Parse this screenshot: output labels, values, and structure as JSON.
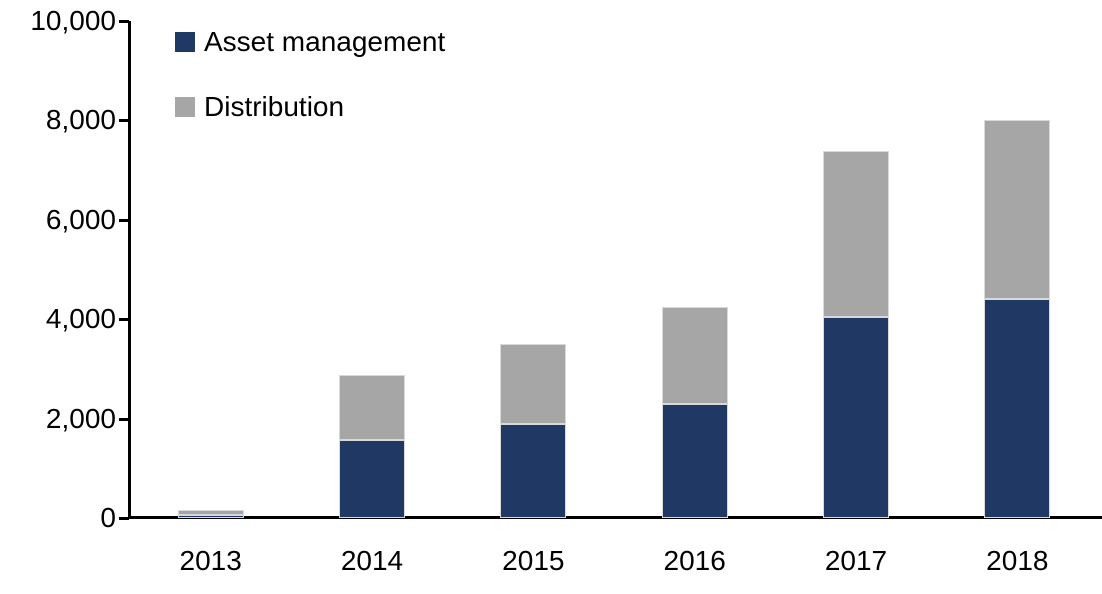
{
  "chart_data": {
    "type": "bar",
    "stacked": true,
    "title": "",
    "xlabel": "",
    "ylabel": "",
    "categories": [
      "2013",
      "2014",
      "2015",
      "2016",
      "2017",
      "2018"
    ],
    "series": [
      {
        "name": "Asset management",
        "color": "#1f3864",
        "values": [
          70,
          1560,
          1900,
          2300,
          4050,
          4400
        ]
      },
      {
        "name": "Distribution",
        "color": "#a6a6a6",
        "values": [
          85,
          1310,
          1600,
          1950,
          3330,
          3600
        ]
      }
    ],
    "totals": [
      155,
      2870,
      3500,
      4250,
      7380,
      8000
    ],
    "ylim": [
      0,
      10000
    ],
    "ytick_interval": 2000,
    "ytick_labels": [
      "0",
      "2,000",
      "4,000",
      "6,000",
      "8,000",
      "10,000"
    ],
    "grid": false,
    "legend_position": "top-left-inside"
  },
  "colors": {
    "axis": "#000000",
    "text": "#000000",
    "background": "#ffffff",
    "bar_border": "#d9d9d9"
  }
}
